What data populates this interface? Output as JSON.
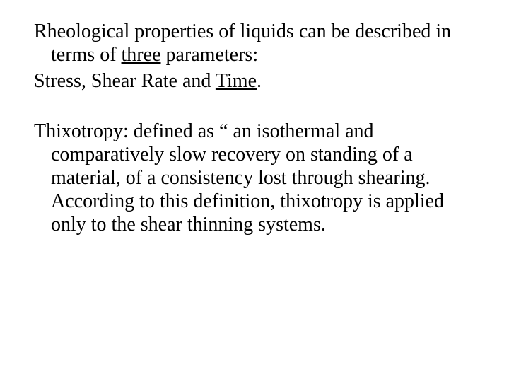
{
  "text": {
    "p1a": "Rheological properties of liquids can be described in terms of ",
    "p1_three": "three",
    "p1b": " parameters:",
    "p2a": "Stress, Shear Rate and ",
    "p2_time": "Time",
    "p2b": ".",
    "p3": "Thixotropy: defined as “ an isothermal and comparatively slow recovery on standing of a material, of a consistency lost through shearing. According to this definition, thixotropy is applied only to the shear thinning systems."
  },
  "style": {
    "font_family": "Times New Roman",
    "font_size_pt": 21,
    "text_color": "#000000",
    "background_color": "#ffffff"
  }
}
